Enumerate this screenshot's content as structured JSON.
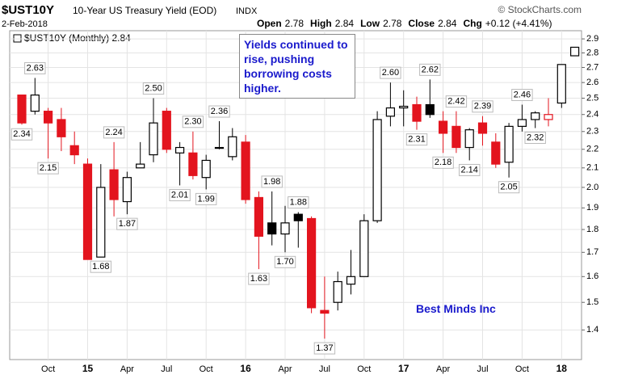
{
  "header": {
    "symbol": "$UST10Y",
    "name": "10-Year US Treasury Yield (EOD)",
    "exchange": "INDX",
    "date": "2-Feb-2018",
    "stats": [
      {
        "label": "Open",
        "value": "2.78"
      },
      {
        "label": "High",
        "value": "2.84"
      },
      {
        "label": "Low",
        "value": "2.78"
      },
      {
        "label": "Close",
        "value": "2.84"
      },
      {
        "label": "Chg",
        "value": "+0.12 (+4.41%)"
      }
    ],
    "copyright": "© StockCharts.com"
  },
  "chart_data": {
    "type": "candlestick",
    "legend": "$UST10Y (Monthly) 2.84",
    "categories": [
      null,
      null,
      "Oct",
      null,
      null,
      "15",
      null,
      null,
      "Apr",
      null,
      null,
      "Jul",
      null,
      null,
      "Oct",
      null,
      null,
      "16",
      null,
      null,
      "Apr",
      null,
      null,
      "Jul",
      null,
      null,
      "Oct",
      null,
      null,
      "17",
      null,
      null,
      "Apr",
      null,
      null,
      "Jul",
      null,
      null,
      "Oct",
      null,
      null,
      "18",
      null
    ],
    "open": [
      2.52,
      2.42,
      2.42,
      2.37,
      2.22,
      2.12,
      1.68,
      2.09,
      1.93,
      2.1,
      2.17,
      2.42,
      2.18,
      2.18,
      2.05,
      2.21,
      2.16,
      2.24,
      1.95,
      1.83,
      1.78,
      1.87,
      1.85,
      1.47,
      1.5,
      1.57,
      1.6,
      1.84,
      2.39,
      2.44,
      2.46,
      2.46,
      2.36,
      2.33,
      2.21,
      2.35,
      2.24,
      2.13,
      2.33,
      2.37,
      2.37,
      2.47,
      2.78
    ],
    "high": [
      2.52,
      2.63,
      2.44,
      2.44,
      2.3,
      2.15,
      2.12,
      2.24,
      2.08,
      2.24,
      2.5,
      2.44,
      2.24,
      2.3,
      2.17,
      2.36,
      2.32,
      2.28,
      1.98,
      1.98,
      1.91,
      1.88,
      1.86,
      1.6,
      1.62,
      1.71,
      1.87,
      2.42,
      2.6,
      2.55,
      2.51,
      2.62,
      2.42,
      2.42,
      2.32,
      2.39,
      2.29,
      2.35,
      2.46,
      2.42,
      2.5,
      2.72,
      2.84
    ],
    "low": [
      2.34,
      2.4,
      2.15,
      2.19,
      2.12,
      1.67,
      1.68,
      1.86,
      1.87,
      2.1,
      2.13,
      2.18,
      2.01,
      2.04,
      1.99,
      2.2,
      2.14,
      1.92,
      1.63,
      1.73,
      1.7,
      1.72,
      1.46,
      1.37,
      1.47,
      1.53,
      1.6,
      1.83,
      2.33,
      2.33,
      2.31,
      2.38,
      2.18,
      2.18,
      2.14,
      2.22,
      2.1,
      2.05,
      2.3,
      2.32,
      2.33,
      2.44,
      2.78
    ],
    "close": [
      2.35,
      2.52,
      2.35,
      2.27,
      2.17,
      1.67,
      2.0,
      1.94,
      2.05,
      2.12,
      2.35,
      2.2,
      2.21,
      2.06,
      2.14,
      2.21,
      2.27,
      1.94,
      1.77,
      1.78,
      1.83,
      1.84,
      1.48,
      1.46,
      1.58,
      1.6,
      1.84,
      2.37,
      2.44,
      2.45,
      2.36,
      2.4,
      2.29,
      2.21,
      2.31,
      2.29,
      2.12,
      2.33,
      2.37,
      2.41,
      2.4,
      2.72,
      2.84
    ],
    "up_color": "#000000",
    "down_color": "#e3141e",
    "point_labels": [
      {
        "index": 0,
        "label": "2.34",
        "side": "low"
      },
      {
        "index": 1,
        "label": "2.63",
        "side": "high"
      },
      {
        "index": 2,
        "label": "2.15",
        "side": "low"
      },
      {
        "index": 6,
        "label": "1.68",
        "side": "low"
      },
      {
        "index": 7,
        "label": "2.24",
        "side": "high"
      },
      {
        "index": 8,
        "label": "1.87",
        "side": "low"
      },
      {
        "index": 10,
        "label": "2.50",
        "side": "high"
      },
      {
        "index": 12,
        "label": "2.01",
        "side": "low"
      },
      {
        "index": 13,
        "label": "2.30",
        "side": "high"
      },
      {
        "index": 14,
        "label": "1.99",
        "side": "low"
      },
      {
        "index": 15,
        "label": "2.36",
        "side": "high"
      },
      {
        "index": 18,
        "label": "1.63",
        "side": "low"
      },
      {
        "index": 19,
        "label": "1.98",
        "side": "high"
      },
      {
        "index": 20,
        "label": "1.70",
        "side": "low"
      },
      {
        "index": 21,
        "label": "1.88",
        "side": "high"
      },
      {
        "index": 23,
        "label": "1.37",
        "side": "low"
      },
      {
        "index": 28,
        "label": "2.60",
        "side": "high"
      },
      {
        "index": 30,
        "label": "2.31",
        "side": "low"
      },
      {
        "index": 31,
        "label": "2.62",
        "side": "high"
      },
      {
        "index": 32,
        "label": "2.18",
        "side": "low"
      },
      {
        "index": 33,
        "label": "2.42",
        "side": "high"
      },
      {
        "index": 34,
        "label": "2.14",
        "side": "low"
      },
      {
        "index": 35,
        "label": "2.39",
        "side": "high"
      },
      {
        "index": 37,
        "label": "2.05",
        "side": "low"
      },
      {
        "index": 38,
        "label": "2.46",
        "side": "high"
      },
      {
        "index": 39,
        "label": "2.32",
        "side": "low"
      }
    ],
    "annotations": [
      "Yields continued to rise, pushing borrowing costs higher.",
      "Best Minds Inc"
    ],
    "ylim": [
      1.3,
      2.96
    ],
    "log_scale": true,
    "grid": true,
    "yticks": [
      1.4,
      1.5,
      1.6,
      1.7,
      1.8,
      1.9,
      {
        "value": 2,
        "label": "2.0"
      },
      2.1,
      2.2,
      2.3,
      2.4,
      2.5,
      2.6,
      2.7,
      2.8,
      2.9
    ]
  }
}
